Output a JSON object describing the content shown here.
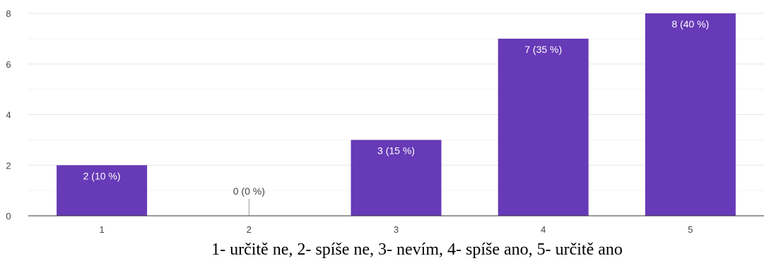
{
  "chart_data": {
    "type": "bar",
    "categories": [
      "1",
      "2",
      "3",
      "4",
      "5"
    ],
    "values": [
      2,
      0,
      3,
      7,
      8
    ],
    "data_labels": [
      "2 (10 %)",
      "0 (0 %)",
      "3 (15 %)",
      "7 (35 %)",
      "8 (40 %)"
    ],
    "y_ticks": [
      "0",
      "2",
      "4",
      "6",
      "8"
    ],
    "ylim": [
      0,
      8
    ],
    "grid": true,
    "bar_color": "#673ab7",
    "caption": "1- určitě ne, 2- spíše ne, 3- nevím, 4- spíše ano, 5- určitě ano"
  }
}
